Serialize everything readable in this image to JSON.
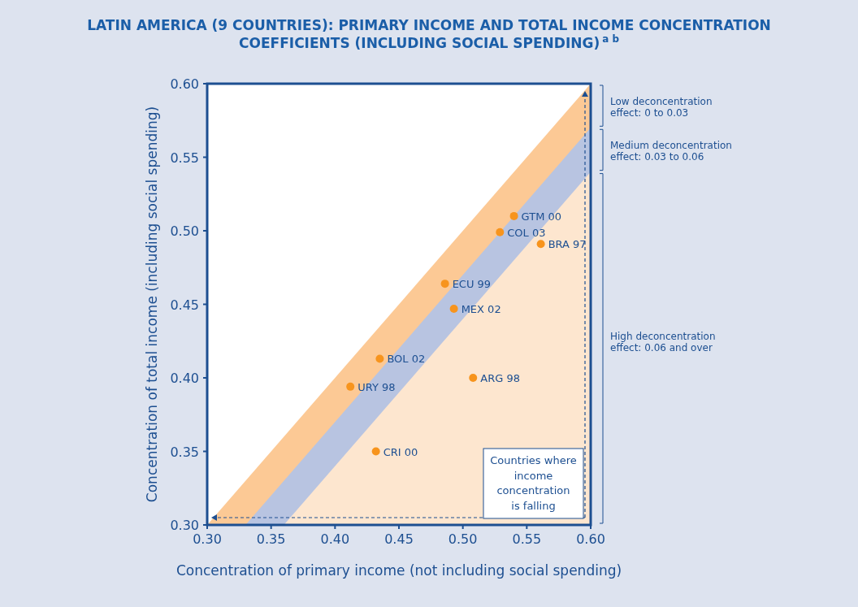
{
  "chart_data": {
    "type": "scatter",
    "title": "LATIN AMERICA (9 COUNTRIES): PRIMARY INCOME AND TOTAL INCOME CONCENTRATION COEFFICIENTS (INCLUDING SOCIAL SPENDING)$^{a b}$",
    "xlabel": "Concentration of primary income (not including social spending)",
    "ylabel": "Concentration of total income (including social spending)",
    "xlim": [
      0.3,
      0.6
    ],
    "ylim": [
      0.3,
      0.6
    ],
    "xticks": [
      {
        "value": 0.3,
        "label": "0.30"
      },
      {
        "value": 0.35,
        "label": "0.35"
      },
      {
        "value": 0.4,
        "label": "0.40"
      },
      {
        "value": 0.45,
        "label": "0.45"
      },
      {
        "value": 0.5,
        "label": "0.50"
      },
      {
        "value": 0.55,
        "label": "0.55"
      },
      {
        "value": 0.6,
        "label": "0.60"
      }
    ],
    "yticks": [
      {
        "value": 0.3,
        "label": "0.30"
      },
      {
        "value": 0.35,
        "label": "0.35"
      },
      {
        "value": 0.4,
        "label": "0.40"
      },
      {
        "value": 0.45,
        "label": "0.45"
      },
      {
        "value": 0.5,
        "label": "0.50"
      },
      {
        "value": 0.55,
        "label": "0.55"
      },
      {
        "value": 0.6,
        "label": "0.60"
      }
    ],
    "grid": false,
    "marker": "circle",
    "series": [
      {
        "type": "area",
        "marker": "none",
        "color": "#fcc995",
        "x": [
          0.3,
          0.6
        ],
        "values": [
          0.3,
          0.6
        ]
      },
      {
        "type": "area",
        "marker": "none",
        "color": "#b8c4e1",
        "x": [
          0.33,
          0.6
        ],
        "values": [
          0.3,
          0.57
        ]
      },
      {
        "type": "area",
        "marker": "none",
        "color": "#fde6cf",
        "x": [
          0.36,
          0.6
        ],
        "values": [
          0.3,
          0.54
        ]
      },
      {
        "type": "scatter",
        "color": "#f7941d",
        "x": [
          0.54,
          0.529,
          0.561,
          0.486,
          0.493,
          0.435,
          0.412,
          0.508,
          0.432
        ],
        "values": [
          0.51,
          0.499,
          0.491,
          0.464,
          0.447,
          0.413,
          0.394,
          0.4,
          0.35
        ]
      }
    ],
    "annotations": [
      "Low deconcentration effect: 0 to 0.03",
      "Medium deconcentration effect: 0.03 to 0.06",
      "High deconcentration effect: 0.06 and over",
      "Countries where income concentration is falling",
      {
        "text": "GTM 00",
        "x": 0.54,
        "y": 0.51
      },
      {
        "text": "COL 03",
        "x": 0.529,
        "y": 0.499
      },
      {
        "text": "BRA 97",
        "x": 0.561,
        "y": 0.491
      },
      {
        "text": "ECU 99",
        "x": 0.486,
        "y": 0.464
      },
      {
        "text": "MEX 02",
        "x": 0.493,
        "y": 0.447
      },
      {
        "text": "BOL 02",
        "x": 0.435,
        "y": 0.413
      },
      {
        "text": "URY 98",
        "x": 0.412,
        "y": 0.394
      },
      {
        "text": "ARG 98",
        "x": 0.508,
        "y": 0.4
      },
      {
        "text": "CRI 00",
        "x": 0.432,
        "y": 0.35
      }
    ]
  }
}
